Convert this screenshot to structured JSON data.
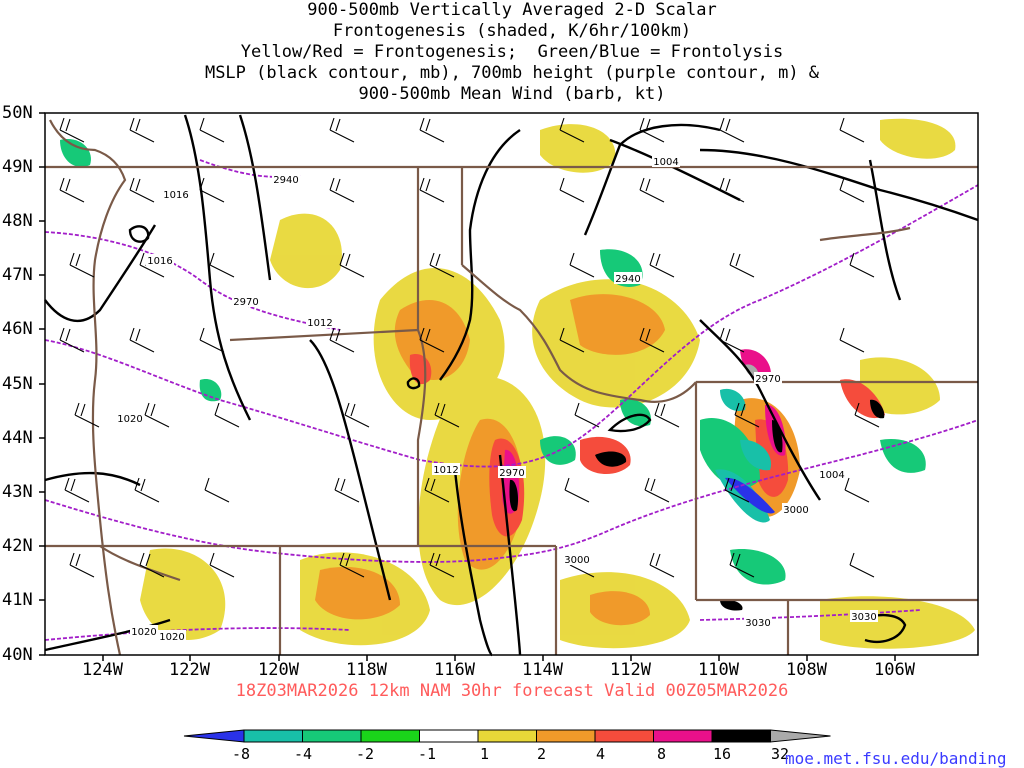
{
  "title_lines": [
    "900-500mb Vertically Averaged 2-D Scalar",
    "Frontogenesis (shaded, K/6hr/100km)",
    "Yellow/Red = Frontogenesis;  Green/Blue = Frontolysis",
    "MSLP (black contour, mb), 700mb height (purple contour, m) &",
    "900-500mb Mean Wind (barb, kt)"
  ],
  "lat_labels": [
    "50N",
    "49N",
    "48N",
    "47N",
    "46N",
    "45N",
    "44N",
    "43N",
    "42N",
    "41N",
    "40N"
  ],
  "lon_labels": [
    "124W",
    "122W",
    "120W",
    "118W",
    "116W",
    "114W",
    "112W",
    "110W",
    "108W",
    "106W"
  ],
  "valid_text": "18Z03MAR2026 12km NAM 30hr forecast Valid 00Z05MAR2026",
  "colorbar": {
    "ticks": [
      "-8",
      "-4",
      "-2",
      "-1",
      "1",
      "2",
      "4",
      "8",
      "16",
      "32"
    ],
    "colors": [
      "#2a32e8",
      "#18c0a8",
      "#16c978",
      "#1ad41a",
      "#ffffff",
      "#e8d838",
      "#f09a2a",
      "#f54c3c",
      "#ea108a",
      "#000000",
      "#aaaaaa"
    ]
  },
  "mslp_labels": [
    "1016",
    "1016",
    "1012",
    "1020",
    "1012",
    "1004",
    "1004",
    "1020",
    "1020"
  ],
  "height_labels": [
    "2940",
    "2970",
    "2970",
    "2940",
    "2970",
    "3000",
    "3000",
    "3030",
    "3030"
  ],
  "colors": {
    "mslp": "#000000",
    "height": "#a21ec9",
    "borders": "#7a5a48",
    "credit": "#3a3aff",
    "valid": "#ff5b5b"
  },
  "credit": "moe.met.fsu.edu/banding"
}
